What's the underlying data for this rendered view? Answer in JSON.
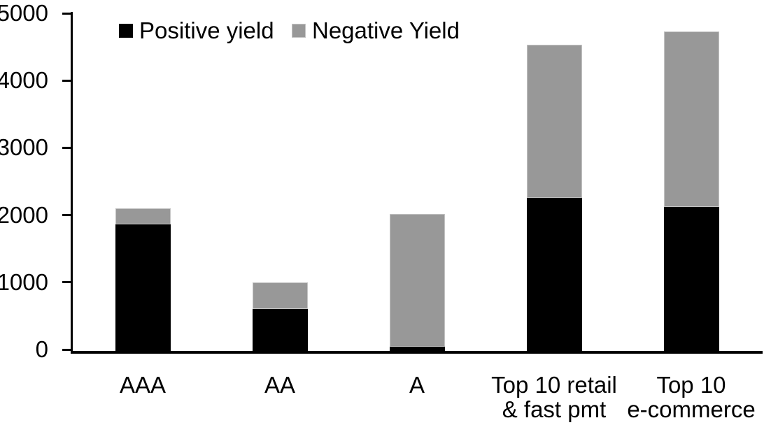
{
  "chart_data": {
    "type": "bar",
    "subtype": "stacked-vertical",
    "categories": [
      "AAA",
      "AA",
      "A",
      "Top 10 retail\n& fast pmt",
      "Top 10\ne-commerce"
    ],
    "series": [
      {
        "name": "Positive yield",
        "color": "#000000",
        "values": [
          1860,
          600,
          40,
          2260,
          2120
        ]
      },
      {
        "name": "Negative Yield",
        "color": "#989898",
        "values": [
          240,
          400,
          1980,
          2270,
          2610
        ]
      }
    ],
    "totals": [
      2100,
      1000,
      2020,
      4530,
      4730
    ],
    "title": "",
    "xlabel": "",
    "ylabel": "",
    "ylim": [
      0,
      5000
    ],
    "yticks": [
      0,
      1000,
      2000,
      3000,
      4000,
      5000
    ],
    "grid": false,
    "legend_position": "top-left-inside"
  },
  "legend": {
    "items": [
      {
        "label": "Positive yield",
        "color": "#000000"
      },
      {
        "label": "Negative Yield",
        "color": "#989898"
      }
    ]
  },
  "colors": {
    "axis": "#000000",
    "background": "#ffffff",
    "bar_positive": "#000000",
    "bar_negative": "#989898"
  }
}
